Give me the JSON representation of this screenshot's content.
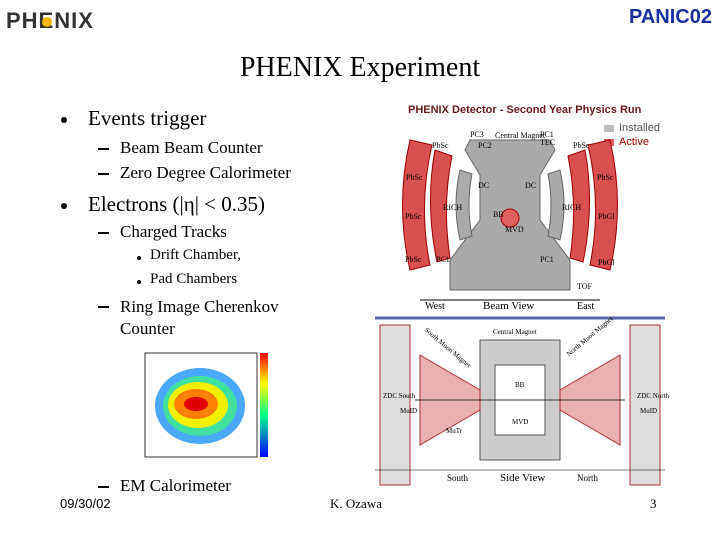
{
  "header": {
    "logo": "PHENIX",
    "conference": "PANIC02"
  },
  "title": "PHENIX Experiment",
  "bullets": [
    {
      "text": "Events trigger",
      "items": [
        {
          "text": "Beam Beam Counter"
        },
        {
          "text": "Zero Degree Calorimeter"
        }
      ]
    },
    {
      "text": "Electrons (|η| < 0.35)",
      "items": [
        {
          "text": "Charged Tracks",
          "items": [
            "Drift Chamber,",
            "Pad Chambers"
          ]
        },
        {
          "text": "Ring Image Cherenkov Counter"
        },
        {
          "text": "EM Calorimeter"
        }
      ]
    }
  ],
  "beam_view": {
    "title": "PHENIX Detector - Second Year Physics Run",
    "legend": [
      "Installed",
      "Active"
    ],
    "labels": [
      "PC3",
      "Central Magnet",
      "PC2",
      "PC1",
      "TEC",
      "PbSc",
      "PbSc",
      "PbSc",
      "PbSc",
      "PbSc",
      "PbSc",
      "DC",
      "DC",
      "RICH",
      "RICH",
      "BB",
      "MVD",
      "PC1",
      "PC1",
      "PbGl",
      "PbGl",
      "TOF"
    ],
    "west": "West",
    "caption": "Beam View",
    "east": "East"
  },
  "side_view": {
    "labels": [
      "Central Magnet",
      "South Muon Magnet",
      "North Muon Magnet",
      "ZDC South",
      "ZDC North",
      "MuID",
      "MuID",
      "MuTr",
      "BB",
      "MVD"
    ],
    "south": "South",
    "caption": "Side View",
    "north": "North"
  },
  "footer": {
    "date": "09/30/02",
    "author": "K. Ozawa",
    "page": 3
  }
}
